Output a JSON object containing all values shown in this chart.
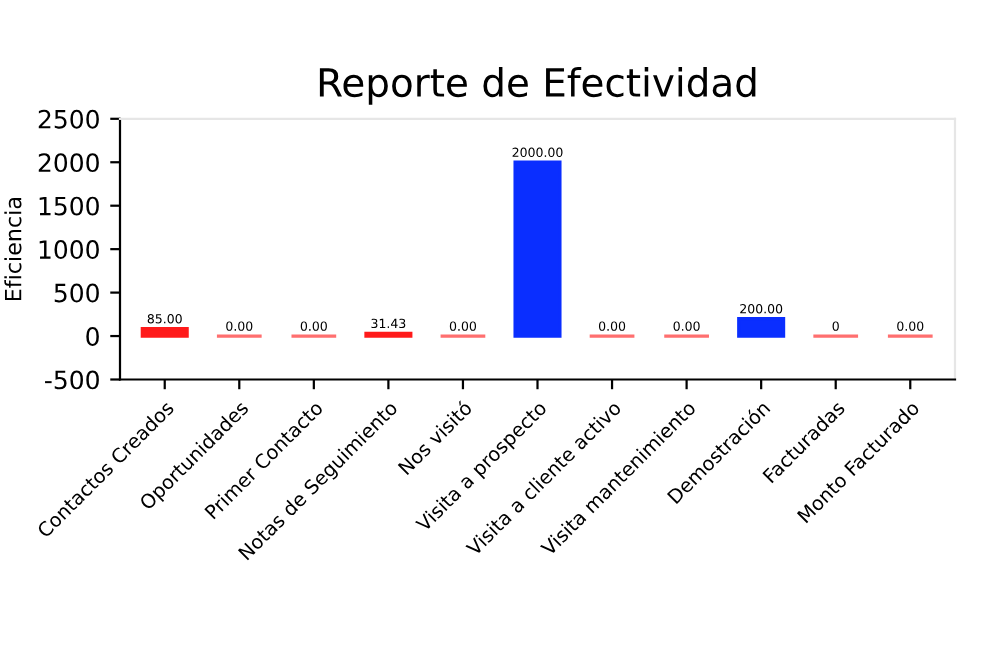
{
  "chart_data": {
    "type": "bar",
    "title": "Reporte de Efectividad",
    "ylabel": "Eficiencia",
    "categories": [
      "Contactos Creados",
      "Oportunidades",
      "Primer Contacto",
      "Notas de Seguimiento",
      "Nos visitó",
      "Visita a prospecto",
      "Visita a cliente activo",
      "Visita mantenimiento",
      "Demostración",
      "Facturadas",
      "Monto Facturado"
    ],
    "values": [
      85,
      0,
      0,
      31.43,
      0,
      2000,
      0,
      0,
      200,
      0,
      0
    ],
    "colors": [
      "#ff1a1a",
      "#ff6f6f",
      "#ff6f6f",
      "#ff1a1a",
      "#ff6f6f",
      "#0a2eff",
      "#ff6f6f",
      "#ff6f6f",
      "#0a2eff",
      "#ff6f6f",
      "#ff6f6f"
    ],
    "value_labels": [
      "85.00",
      "0.00",
      "0.00",
      "31.43",
      "0.00",
      "2000.00",
      "0.00",
      "0.00",
      "200.00",
      "0",
      "0.00"
    ],
    "ylim": [
      -500,
      2500
    ],
    "yticks": [
      -500,
      0,
      500,
      1000,
      1500,
      2000,
      2500
    ],
    "grid": false,
    "legend": false
  }
}
